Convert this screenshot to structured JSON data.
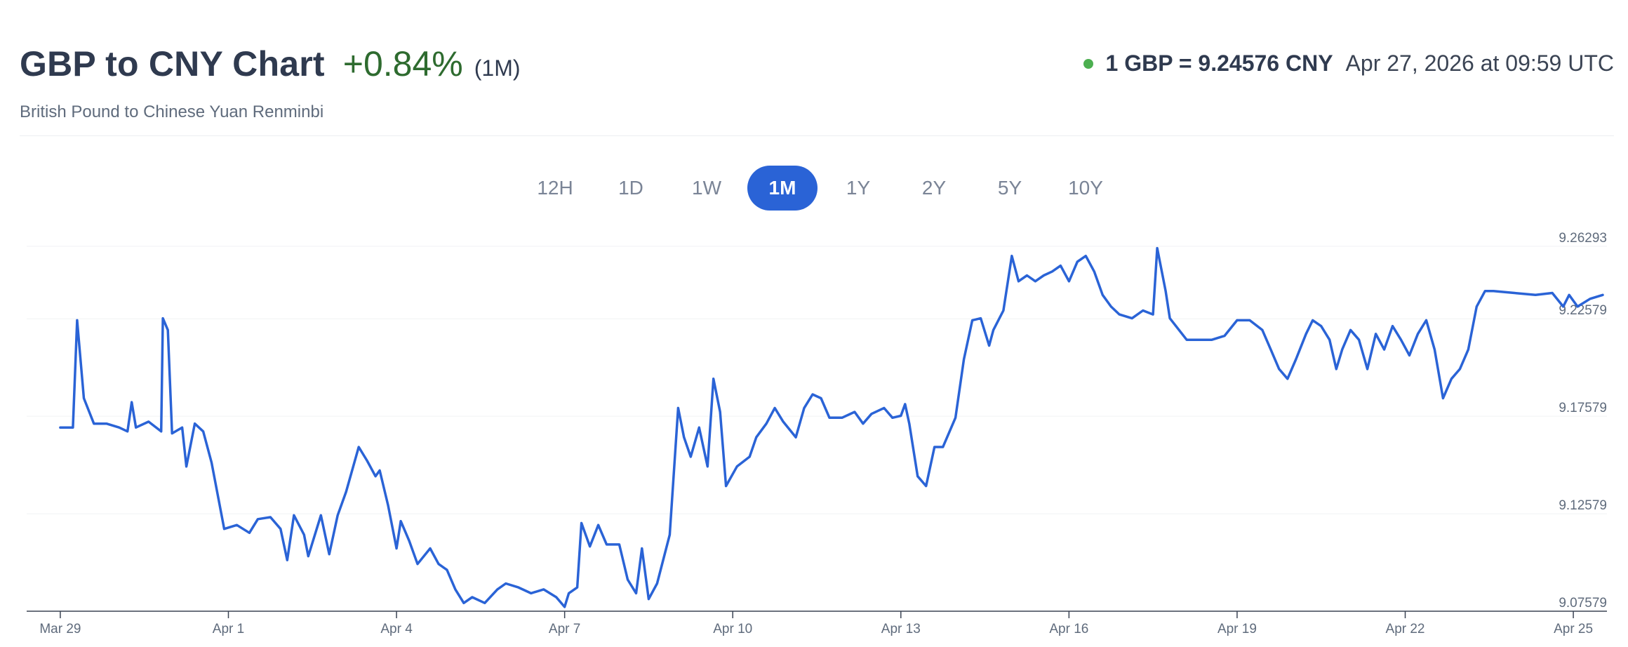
{
  "header": {
    "title": "GBP to CNY Chart",
    "change": "+0.84%",
    "period": "(1M)",
    "subtitle": "British Pound to Chinese Yuan Renminbi"
  },
  "rate": {
    "text": "1 GBP = 9.24576 CNY",
    "timestamp": "Apr 27, 2026 at 09:59 UTC"
  },
  "range_tabs": [
    "12H",
    "1D",
    "1W",
    "1M",
    "1Y",
    "2Y",
    "5Y",
    "10Y"
  ],
  "active_range": "1M",
  "colors": {
    "line": "#2a63d6",
    "up": "#2e6b2f",
    "live": "#4caf50"
  },
  "chart_data": {
    "type": "line",
    "title": "GBP to CNY Chart",
    "subtitle": "British Pound to Chinese Yuan Renminbi",
    "xlabel": "",
    "ylabel": "",
    "ylim": [
      9.07579,
      9.26293
    ],
    "y_ticks": [
      "9.26293",
      "9.22579",
      "9.17579",
      "9.12579",
      "9.07579"
    ],
    "x_ticks": [
      "Mar 29",
      "Apr 1",
      "Apr 4",
      "Apr 7",
      "Apr 10",
      "Apr 13",
      "Apr 16",
      "Apr 19",
      "Apr 22",
      "Apr 25"
    ],
    "grid": true,
    "legend": "none",
    "series": [
      {
        "points": [
          [
            0.0,
            9.17
          ],
          [
            0.15,
            9.17
          ],
          [
            0.2,
            9.225
          ],
          [
            0.28,
            9.185
          ],
          [
            0.4,
            9.172
          ],
          [
            0.55,
            9.172
          ],
          [
            0.7,
            9.17
          ],
          [
            0.8,
            9.168
          ],
          [
            0.85,
            9.183
          ],
          [
            0.9,
            9.17
          ],
          [
            1.05,
            9.173
          ],
          [
            1.2,
            9.168
          ],
          [
            1.22,
            9.226
          ],
          [
            1.28,
            9.22
          ],
          [
            1.33,
            9.167
          ],
          [
            1.45,
            9.17
          ],
          [
            1.5,
            9.15
          ],
          [
            1.6,
            9.172
          ],
          [
            1.7,
            9.168
          ],
          [
            1.8,
            9.152
          ],
          [
            1.95,
            9.118
          ],
          [
            2.1,
            9.12
          ],
          [
            2.25,
            9.116
          ],
          [
            2.35,
            9.123
          ],
          [
            2.5,
            9.124
          ],
          [
            2.62,
            9.118
          ],
          [
            2.7,
            9.102
          ],
          [
            2.78,
            9.125
          ],
          [
            2.9,
            9.115
          ],
          [
            2.95,
            9.104
          ],
          [
            3.1,
            9.125
          ],
          [
            3.2,
            9.105
          ],
          [
            3.3,
            9.125
          ],
          [
            3.4,
            9.137
          ],
          [
            3.55,
            9.16
          ],
          [
            3.65,
            9.153
          ],
          [
            3.75,
            9.145
          ],
          [
            3.8,
            9.148
          ],
          [
            3.9,
            9.13
          ],
          [
            4.0,
            9.108
          ],
          [
            4.05,
            9.122
          ],
          [
            4.15,
            9.112
          ],
          [
            4.25,
            9.1
          ],
          [
            4.4,
            9.108
          ],
          [
            4.5,
            9.1
          ],
          [
            4.6,
            9.097
          ],
          [
            4.7,
            9.087
          ],
          [
            4.8,
            9.08
          ],
          [
            4.9,
            9.083
          ],
          [
            5.05,
            9.08
          ],
          [
            5.2,
            9.087
          ],
          [
            5.3,
            9.09
          ],
          [
            5.45,
            9.088
          ],
          [
            5.6,
            9.085
          ],
          [
            5.75,
            9.087
          ],
          [
            5.9,
            9.083
          ],
          [
            6.0,
            9.078
          ],
          [
            6.05,
            9.085
          ],
          [
            6.15,
            9.088
          ],
          [
            6.2,
            9.121
          ],
          [
            6.3,
            9.109
          ],
          [
            6.4,
            9.12
          ],
          [
            6.5,
            9.11
          ],
          [
            6.65,
            9.11
          ],
          [
            6.75,
            9.092
          ],
          [
            6.85,
            9.085
          ],
          [
            6.92,
            9.108
          ],
          [
            7.0,
            9.082
          ],
          [
            7.1,
            9.09
          ],
          [
            7.25,
            9.115
          ],
          [
            7.35,
            9.18
          ],
          [
            7.42,
            9.165
          ],
          [
            7.5,
            9.155
          ],
          [
            7.6,
            9.17
          ],
          [
            7.7,
            9.15
          ],
          [
            7.77,
            9.195
          ],
          [
            7.85,
            9.178
          ],
          [
            7.92,
            9.14
          ],
          [
            8.05,
            9.15
          ],
          [
            8.2,
            9.155
          ],
          [
            8.28,
            9.165
          ],
          [
            8.4,
            9.172
          ],
          [
            8.5,
            9.18
          ],
          [
            8.6,
            9.173
          ],
          [
            8.75,
            9.165
          ],
          [
            8.85,
            9.18
          ],
          [
            8.95,
            9.187
          ],
          [
            9.05,
            9.185
          ],
          [
            9.15,
            9.175
          ],
          [
            9.3,
            9.175
          ],
          [
            9.45,
            9.178
          ],
          [
            9.55,
            9.172
          ],
          [
            9.65,
            9.177
          ],
          [
            9.8,
            9.18
          ],
          [
            9.9,
            9.175
          ],
          [
            10.0,
            9.176
          ],
          [
            10.05,
            9.182
          ],
          [
            10.1,
            9.172
          ],
          [
            10.2,
            9.145
          ],
          [
            10.3,
            9.14
          ],
          [
            10.4,
            9.16
          ],
          [
            10.5,
            9.16
          ],
          [
            10.55,
            9.165
          ],
          [
            10.65,
            9.175
          ],
          [
            10.75,
            9.205
          ],
          [
            10.85,
            9.225
          ],
          [
            10.95,
            9.226
          ],
          [
            11.05,
            9.212
          ],
          [
            11.1,
            9.22
          ],
          [
            11.22,
            9.23
          ],
          [
            11.32,
            9.258
          ],
          [
            11.4,
            9.245
          ],
          [
            11.5,
            9.248
          ],
          [
            11.6,
            9.245
          ],
          [
            11.7,
            9.248
          ],
          [
            11.8,
            9.25
          ],
          [
            11.9,
            9.253
          ],
          [
            12.0,
            9.245
          ],
          [
            12.1,
            9.255
          ],
          [
            12.2,
            9.258
          ],
          [
            12.3,
            9.25
          ],
          [
            12.4,
            9.238
          ],
          [
            12.5,
            9.232
          ],
          [
            12.6,
            9.228
          ],
          [
            12.75,
            9.226
          ],
          [
            12.88,
            9.23
          ],
          [
            13.0,
            9.228
          ],
          [
            13.05,
            9.262
          ],
          [
            13.15,
            9.24
          ],
          [
            13.2,
            9.226
          ],
          [
            13.4,
            9.215
          ],
          [
            13.55,
            9.215
          ],
          [
            13.7,
            9.215
          ],
          [
            13.85,
            9.217
          ],
          [
            14.0,
            9.225
          ],
          [
            14.15,
            9.225
          ],
          [
            14.3,
            9.22
          ],
          [
            14.4,
            9.21
          ],
          [
            14.5,
            9.2
          ],
          [
            14.6,
            9.195
          ],
          [
            14.7,
            9.205
          ],
          [
            14.82,
            9.218
          ],
          [
            14.9,
            9.225
          ],
          [
            15.0,
            9.222
          ],
          [
            15.1,
            9.215
          ],
          [
            15.18,
            9.2
          ],
          [
            15.25,
            9.21
          ],
          [
            15.35,
            9.22
          ],
          [
            15.45,
            9.215
          ],
          [
            15.55,
            9.2
          ],
          [
            15.65,
            9.218
          ],
          [
            15.75,
            9.21
          ],
          [
            15.85,
            9.222
          ],
          [
            15.95,
            9.215
          ],
          [
            16.05,
            9.207
          ],
          [
            16.15,
            9.218
          ],
          [
            16.25,
            9.225
          ],
          [
            16.35,
            9.21
          ],
          [
            16.45,
            9.185
          ],
          [
            16.55,
            9.195
          ],
          [
            16.65,
            9.2
          ],
          [
            16.75,
            9.21
          ],
          [
            16.85,
            9.232
          ],
          [
            16.95,
            9.24
          ],
          [
            17.05,
            9.24
          ],
          [
            17.3,
            9.239
          ],
          [
            17.55,
            9.238
          ],
          [
            17.75,
            9.239
          ],
          [
            17.88,
            9.232
          ],
          [
            17.95,
            9.238
          ],
          [
            18.05,
            9.232
          ],
          [
            18.2,
            9.236
          ],
          [
            18.35,
            9.238
          ]
        ]
      }
    ]
  }
}
